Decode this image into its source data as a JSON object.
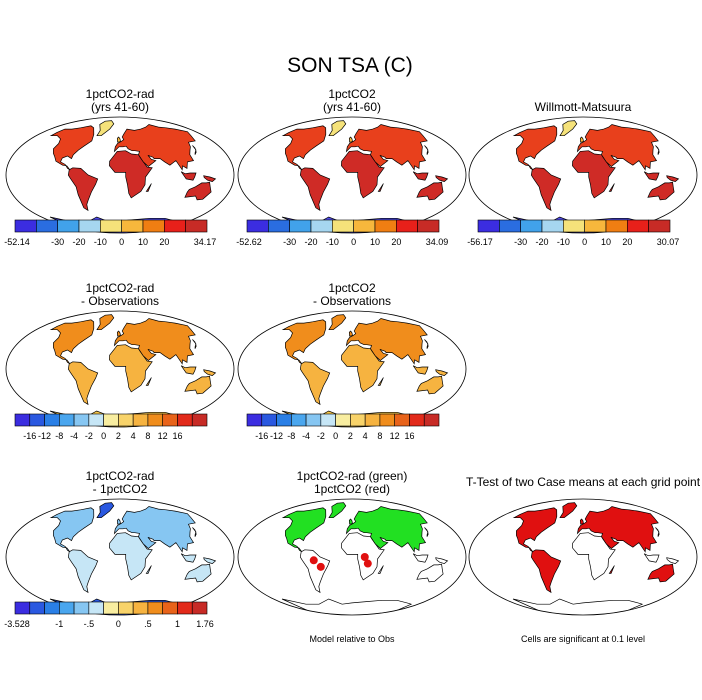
{
  "title": "SON TSA (C)",
  "panels": [
    {
      "id": "p1",
      "title_lines": [
        "1pctCO2-rad",
        "(yrs 41-60)"
      ],
      "kind": "abs",
      "colorbar": {
        "colors": [
          "#3b2de0",
          "#2a6de0",
          "#41a2ea",
          "#a6d6f0",
          "#f5e27a",
          "#f7b73c",
          "#f07e12",
          "#e8201a",
          "#c72b26"
        ],
        "labels": [
          "-52.14",
          "",
          "-30",
          "-20",
          "-10",
          "0",
          "10",
          "20",
          "34.17"
        ]
      }
    },
    {
      "id": "p2",
      "title_lines": [
        "1pctCO2",
        "(yrs 41-60)"
      ],
      "kind": "abs",
      "colorbar": {
        "colors": [
          "#3b2de0",
          "#2a6de0",
          "#41a2ea",
          "#a6d6f0",
          "#f5e27a",
          "#f7b73c",
          "#f07e12",
          "#e8201a",
          "#c72b26"
        ],
        "labels": [
          "-52.62",
          "",
          "-30",
          "-20",
          "-10",
          "0",
          "10",
          "20",
          "34.09"
        ]
      }
    },
    {
      "id": "p3",
      "title_lines": [
        "Willmott-Matsuura"
      ],
      "kind": "abs",
      "colorbar": {
        "colors": [
          "#3b2de0",
          "#2a6de0",
          "#41a2ea",
          "#a6d6f0",
          "#f5e27a",
          "#f7b73c",
          "#f07e12",
          "#e8201a",
          "#c72b26"
        ],
        "labels": [
          "-56.17",
          "",
          "-30",
          "-20",
          "-10",
          "0",
          "10",
          "20",
          "30.07"
        ]
      }
    },
    {
      "id": "p4",
      "title_lines": [
        "1pctCO2-rad",
        "- Observations"
      ],
      "kind": "bias",
      "colorbar": {
        "colors": [
          "#3b2de0",
          "#2a58e0",
          "#2a7fe6",
          "#4aa6ee",
          "#86c6f2",
          "#c6e6f6",
          "#f8eda0",
          "#f8d36a",
          "#f6b340",
          "#f08d1c",
          "#e8631a",
          "#e22a1a",
          "#c72b26"
        ],
        "labels": [
          "",
          "-16",
          "-12",
          "-8",
          "-4",
          "-2",
          "0",
          "2",
          "4",
          "8",
          "12",
          "16",
          ""
        ]
      }
    },
    {
      "id": "p5",
      "title_lines": [
        "1pctCO2",
        "- Observations"
      ],
      "kind": "bias",
      "colorbar": {
        "colors": [
          "#3b2de0",
          "#2a58e0",
          "#2a7fe6",
          "#4aa6ee",
          "#86c6f2",
          "#c6e6f6",
          "#f8eda0",
          "#f8d36a",
          "#f6b340",
          "#f08d1c",
          "#e8631a",
          "#e22a1a",
          "#c72b26"
        ],
        "labels": [
          "",
          "-16",
          "-12",
          "-8",
          "-4",
          "-2",
          "0",
          "2",
          "4",
          "8",
          "12",
          "16",
          ""
        ]
      }
    },
    {
      "id": "p6",
      "title_lines": [
        "1pctCO2-rad",
        "- 1pctCO2"
      ],
      "kind": "diff",
      "colorbar": {
        "colors": [
          "#3b2de0",
          "#2a58e0",
          "#2a7fe6",
          "#4aa6ee",
          "#86c6f2",
          "#c6e6f6",
          "#f8eda0",
          "#f8d36a",
          "#f6b340",
          "#f08d1c",
          "#e8631a",
          "#e22a1a",
          "#c72b26"
        ],
        "labels": [
          "-3.528",
          "",
          "",
          "-1",
          "",
          "-.5",
          "",
          "0",
          "",
          ".5",
          "",
          "1",
          "1.76"
        ]
      }
    },
    {
      "id": "p7",
      "title_lines": [
        "1pctCO2-rad (green)",
        "1pctCO2 (red)"
      ],
      "kind": "green",
      "note": "Model relative to Obs"
    },
    {
      "id": "p8",
      "title_lines": [
        "T-Test of two Case means at each grid point"
      ],
      "kind": "ttest",
      "note": "Cells are significant at 0.1 level"
    }
  ],
  "icons": {
    "map": "world-map-icon"
  }
}
